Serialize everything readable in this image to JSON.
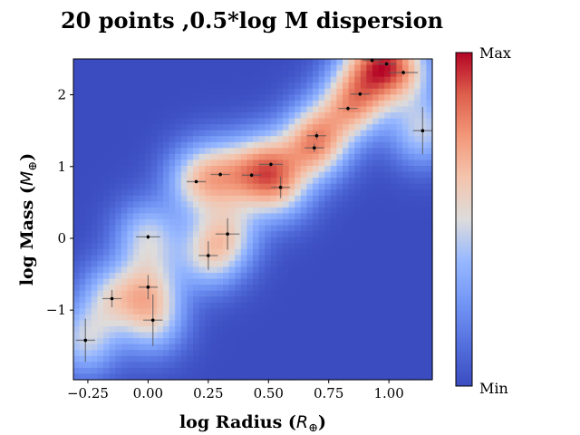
{
  "chart_data": {
    "type": "scatter",
    "title": "20 points ,0.5*log M dispersion",
    "xlabel": "log Radius (",
    "xlabel_symbol": "R",
    "xlabel_sub": "⊕",
    "xlabel_close": ")",
    "ylabel": "log Mass (",
    "ylabel_symbol": "M",
    "ylabel_sub": "⊕",
    "ylabel_close": ")",
    "xlim": [
      -0.31,
      1.18
    ],
    "ylim": [
      -1.97,
      2.5
    ],
    "xticks": [
      -0.25,
      0.0,
      0.25,
      0.5,
      0.75,
      1.0
    ],
    "xtick_labels": [
      "−0.25",
      "0.00",
      "0.25",
      "0.50",
      "0.75",
      "1.00"
    ],
    "yticks": [
      -1,
      0,
      1,
      2
    ],
    "ytick_labels": [
      "−1",
      "0",
      "1",
      "2"
    ],
    "colorbar": {
      "colormap": "coolwarm",
      "max_label": "Max",
      "min_label": "Min"
    },
    "grid": false,
    "points": [
      {
        "x": -0.26,
        "y": -1.42,
        "xerr": 0.04,
        "yerr": 0.3
      },
      {
        "x": -0.15,
        "y": -0.84,
        "xerr": 0.04,
        "yerr": 0.12
      },
      {
        "x": 0.0,
        "y": 0.02,
        "xerr": 0.05,
        "yerr": 0.03
      },
      {
        "x": 0.0,
        "y": -0.68,
        "xerr": 0.04,
        "yerr": 0.17
      },
      {
        "x": 0.02,
        "y": -1.14,
        "xerr": 0.04,
        "yerr": 0.36
      },
      {
        "x": 0.2,
        "y": 0.79,
        "xerr": 0.04,
        "yerr": 0.02
      },
      {
        "x": 0.25,
        "y": -0.24,
        "xerr": 0.04,
        "yerr": 0.2
      },
      {
        "x": 0.3,
        "y": 0.89,
        "xerr": 0.04,
        "yerr": 0.03
      },
      {
        "x": 0.33,
        "y": 0.06,
        "xerr": 0.05,
        "yerr": 0.22
      },
      {
        "x": 0.43,
        "y": 0.88,
        "xerr": 0.04,
        "yerr": 0.03
      },
      {
        "x": 0.51,
        "y": 1.03,
        "xerr": 0.05,
        "yerr": 0.03
      },
      {
        "x": 0.55,
        "y": 0.71,
        "xerr": 0.04,
        "yerr": 0.15
      },
      {
        "x": 0.69,
        "y": 1.26,
        "xerr": 0.04,
        "yerr": 0.06
      },
      {
        "x": 0.7,
        "y": 1.43,
        "xerr": 0.04,
        "yerr": 0.05
      },
      {
        "x": 0.83,
        "y": 1.81,
        "xerr": 0.04,
        "yerr": 0.03
      },
      {
        "x": 0.88,
        "y": 2.01,
        "xerr": 0.04,
        "yerr": 0.03
      },
      {
        "x": 0.93,
        "y": 2.48,
        "xerr": 0.04,
        "yerr": 0.03
      },
      {
        "x": 0.99,
        "y": 2.43,
        "xerr": 0.04,
        "yerr": 0.03
      },
      {
        "x": 1.06,
        "y": 2.31,
        "xerr": 0.06,
        "yerr": 0.03
      },
      {
        "x": 1.14,
        "y": 1.5,
        "xerr": 0.04,
        "yerr": 0.33
      }
    ]
  }
}
